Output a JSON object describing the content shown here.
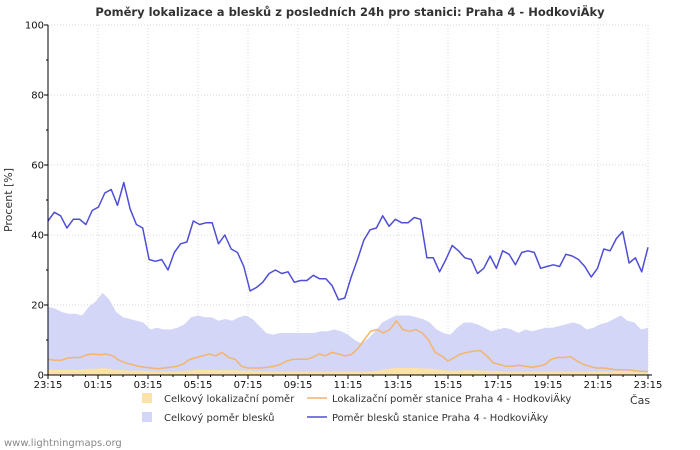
{
  "footer": "www.lightningmaps.org",
  "chart_data": {
    "type": "line",
    "title": "Poměry lokalizace a blesků z posledních 24h pro stanici: Praha 4 - HodkoviÄky",
    "ylabel": "Procent   [%]",
    "xlabel": "Čas",
    "ylim": [
      0,
      100
    ],
    "yticks": [
      "0",
      "20",
      "40",
      "60",
      "80",
      "100"
    ],
    "xticks": [
      "23:15",
      "01:15",
      "03:15",
      "05:15",
      "07:15",
      "09:15",
      "11:15",
      "13:15",
      "15:15",
      "17:15",
      "19:15",
      "21:15",
      "23:15"
    ],
    "grid": true,
    "colors": {
      "area_total_loc": "#fbe3a7",
      "area_total_strokes": "#d3d6f7",
      "line_station_loc": "#f2b46e",
      "line_station_strokes": "#4e4ed6",
      "grid": "#d9d9d9",
      "axis": "#000000"
    },
    "legend": [
      {
        "key": "area_total_loc",
        "label": "Celkový lokalizační poměr",
        "kind": "area"
      },
      {
        "key": "line_station_loc",
        "label": "Lokalizační poměr stanice Praha 4 - HodkoviÄky",
        "kind": "line"
      },
      {
        "key": "area_total_strokes",
        "label": "Celkový poměr blesků",
        "kind": "area"
      },
      {
        "key": "line_station_strokes",
        "label": "Poměr blesků stanice Praha 4 - HodkoviÄky",
        "kind": "line"
      }
    ],
    "series": [
      {
        "name": "Celkový poměr blesků",
        "key": "area_total_strokes",
        "kind": "area",
        "values": [
          19.5,
          19,
          18,
          17.5,
          17.5,
          17,
          19.5,
          21,
          23.5,
          21.5,
          18,
          16.5,
          16,
          15.5,
          15,
          13,
          13.5,
          13,
          13,
          13.5,
          14.5,
          16.5,
          17,
          16.5,
          16.5,
          15.5,
          16,
          15.5,
          16.5,
          17,
          16,
          14,
          12,
          11.5,
          12,
          12,
          12,
          12,
          12,
          12,
          12.5,
          12.5,
          13,
          12.5,
          11.5,
          10,
          9,
          10.5,
          12.5,
          15,
          16,
          17,
          17,
          17,
          16.5,
          16,
          15,
          13,
          12,
          11.5,
          13.5,
          15,
          15,
          14.5,
          13.5,
          12.5,
          13,
          13.5,
          13,
          12,
          13,
          12.5,
          13,
          13.5,
          13.5,
          14,
          14.5,
          15,
          14.5,
          13,
          13.5,
          14.5,
          15,
          16,
          17,
          15.5,
          15,
          13,
          13.5
        ]
      },
      {
        "name": "Celkový lokalizační poměr",
        "key": "area_total_loc",
        "kind": "area",
        "values": [
          1.5,
          1.5,
          1.5,
          1.5,
          1.5,
          1.5,
          1.8,
          1.8,
          2,
          1.8,
          1.5,
          1.4,
          1.2,
          1.2,
          1.2,
          1,
          1,
          1,
          1,
          1,
          1.2,
          1.3,
          1.5,
          1.5,
          1.5,
          1.4,
          1.4,
          1.4,
          1.3,
          1.2,
          1.2,
          1.1,
          1,
          1,
          1,
          1,
          1,
          1,
          1,
          1,
          1,
          1,
          1,
          1,
          1,
          1,
          0.9,
          1,
          1.1,
          1.5,
          1.8,
          2,
          2,
          2,
          2,
          1.9,
          1.8,
          1.6,
          1.4,
          1.2,
          1.2,
          1.3,
          1.3,
          1.3,
          1.2,
          1.2,
          1.1,
          1,
          1,
          1,
          1,
          1,
          1,
          1,
          1,
          1,
          1,
          1,
          1,
          1,
          1,
          1,
          1,
          1.1,
          1.2,
          1.1,
          1,
          1,
          1
        ]
      },
      {
        "name": "Lokalizační poměr stanice Praha 4 - HodkoviÄky",
        "key": "line_station_loc",
        "kind": "line",
        "values": [
          4.5,
          4.2,
          4.2,
          4.8,
          5,
          5,
          5.8,
          6,
          5.8,
          6,
          5.5,
          4.2,
          3.5,
          3,
          2.5,
          2.2,
          2,
          1.8,
          2,
          2.2,
          2.5,
          3.2,
          4.5,
          5,
          5.5,
          6,
          5.5,
          6.5,
          5,
          4.5,
          2.5,
          2,
          2,
          2,
          2.2,
          2.5,
          3,
          4,
          4.5,
          4.5,
          4.5,
          5,
          6,
          5.5,
          6.5,
          6,
          5.5,
          5.8,
          7.5,
          10,
          12.5,
          13,
          12,
          13,
          15.5,
          13,
          12.5,
          13,
          12,
          10,
          6.5,
          5.5,
          4,
          5,
          6,
          6.5,
          6.8,
          7,
          5.5,
          3.5,
          3,
          2.5,
          2.5,
          2.8,
          2.5,
          2.2,
          2.5,
          3,
          4.5,
          5,
          5,
          5.2,
          4,
          3,
          2.5,
          2,
          2,
          1.8,
          1.5,
          1.5,
          1.5,
          1.2,
          1,
          1
        ]
      },
      {
        "name": "Poměr blesků stanice Praha 4 - HodkoviÄky",
        "key": "line_station_strokes",
        "kind": "line",
        "values": [
          44,
          46.5,
          45.5,
          42,
          44.5,
          44.5,
          43,
          47,
          48,
          52,
          53,
          48.5,
          55,
          47.5,
          43,
          42,
          33,
          32.5,
          33,
          30,
          35,
          37.5,
          38,
          44,
          43,
          43.5,
          43.5,
          37.5,
          40,
          36,
          35,
          31,
          24,
          25,
          26.5,
          29,
          30,
          29,
          29.5,
          26.5,
          27,
          27,
          28.5,
          27.5,
          27.5,
          25.5,
          21.5,
          22,
          28,
          33,
          38.5,
          41.5,
          42,
          45.5,
          42.5,
          44.5,
          43.5,
          43.5,
          45,
          44.5,
          33.5,
          33.5,
          29.5,
          33,
          37,
          35.5,
          33.5,
          33,
          29,
          30.5,
          34,
          30.5,
          35.5,
          34.5,
          31.5,
          35,
          35.5,
          35,
          30.5,
          31,
          31.5,
          31,
          34.5,
          34,
          33,
          31,
          28,
          30.5,
          36,
          35.5,
          39,
          41,
          32,
          33.5,
          29.5,
          36.5
        ]
      }
    ]
  }
}
